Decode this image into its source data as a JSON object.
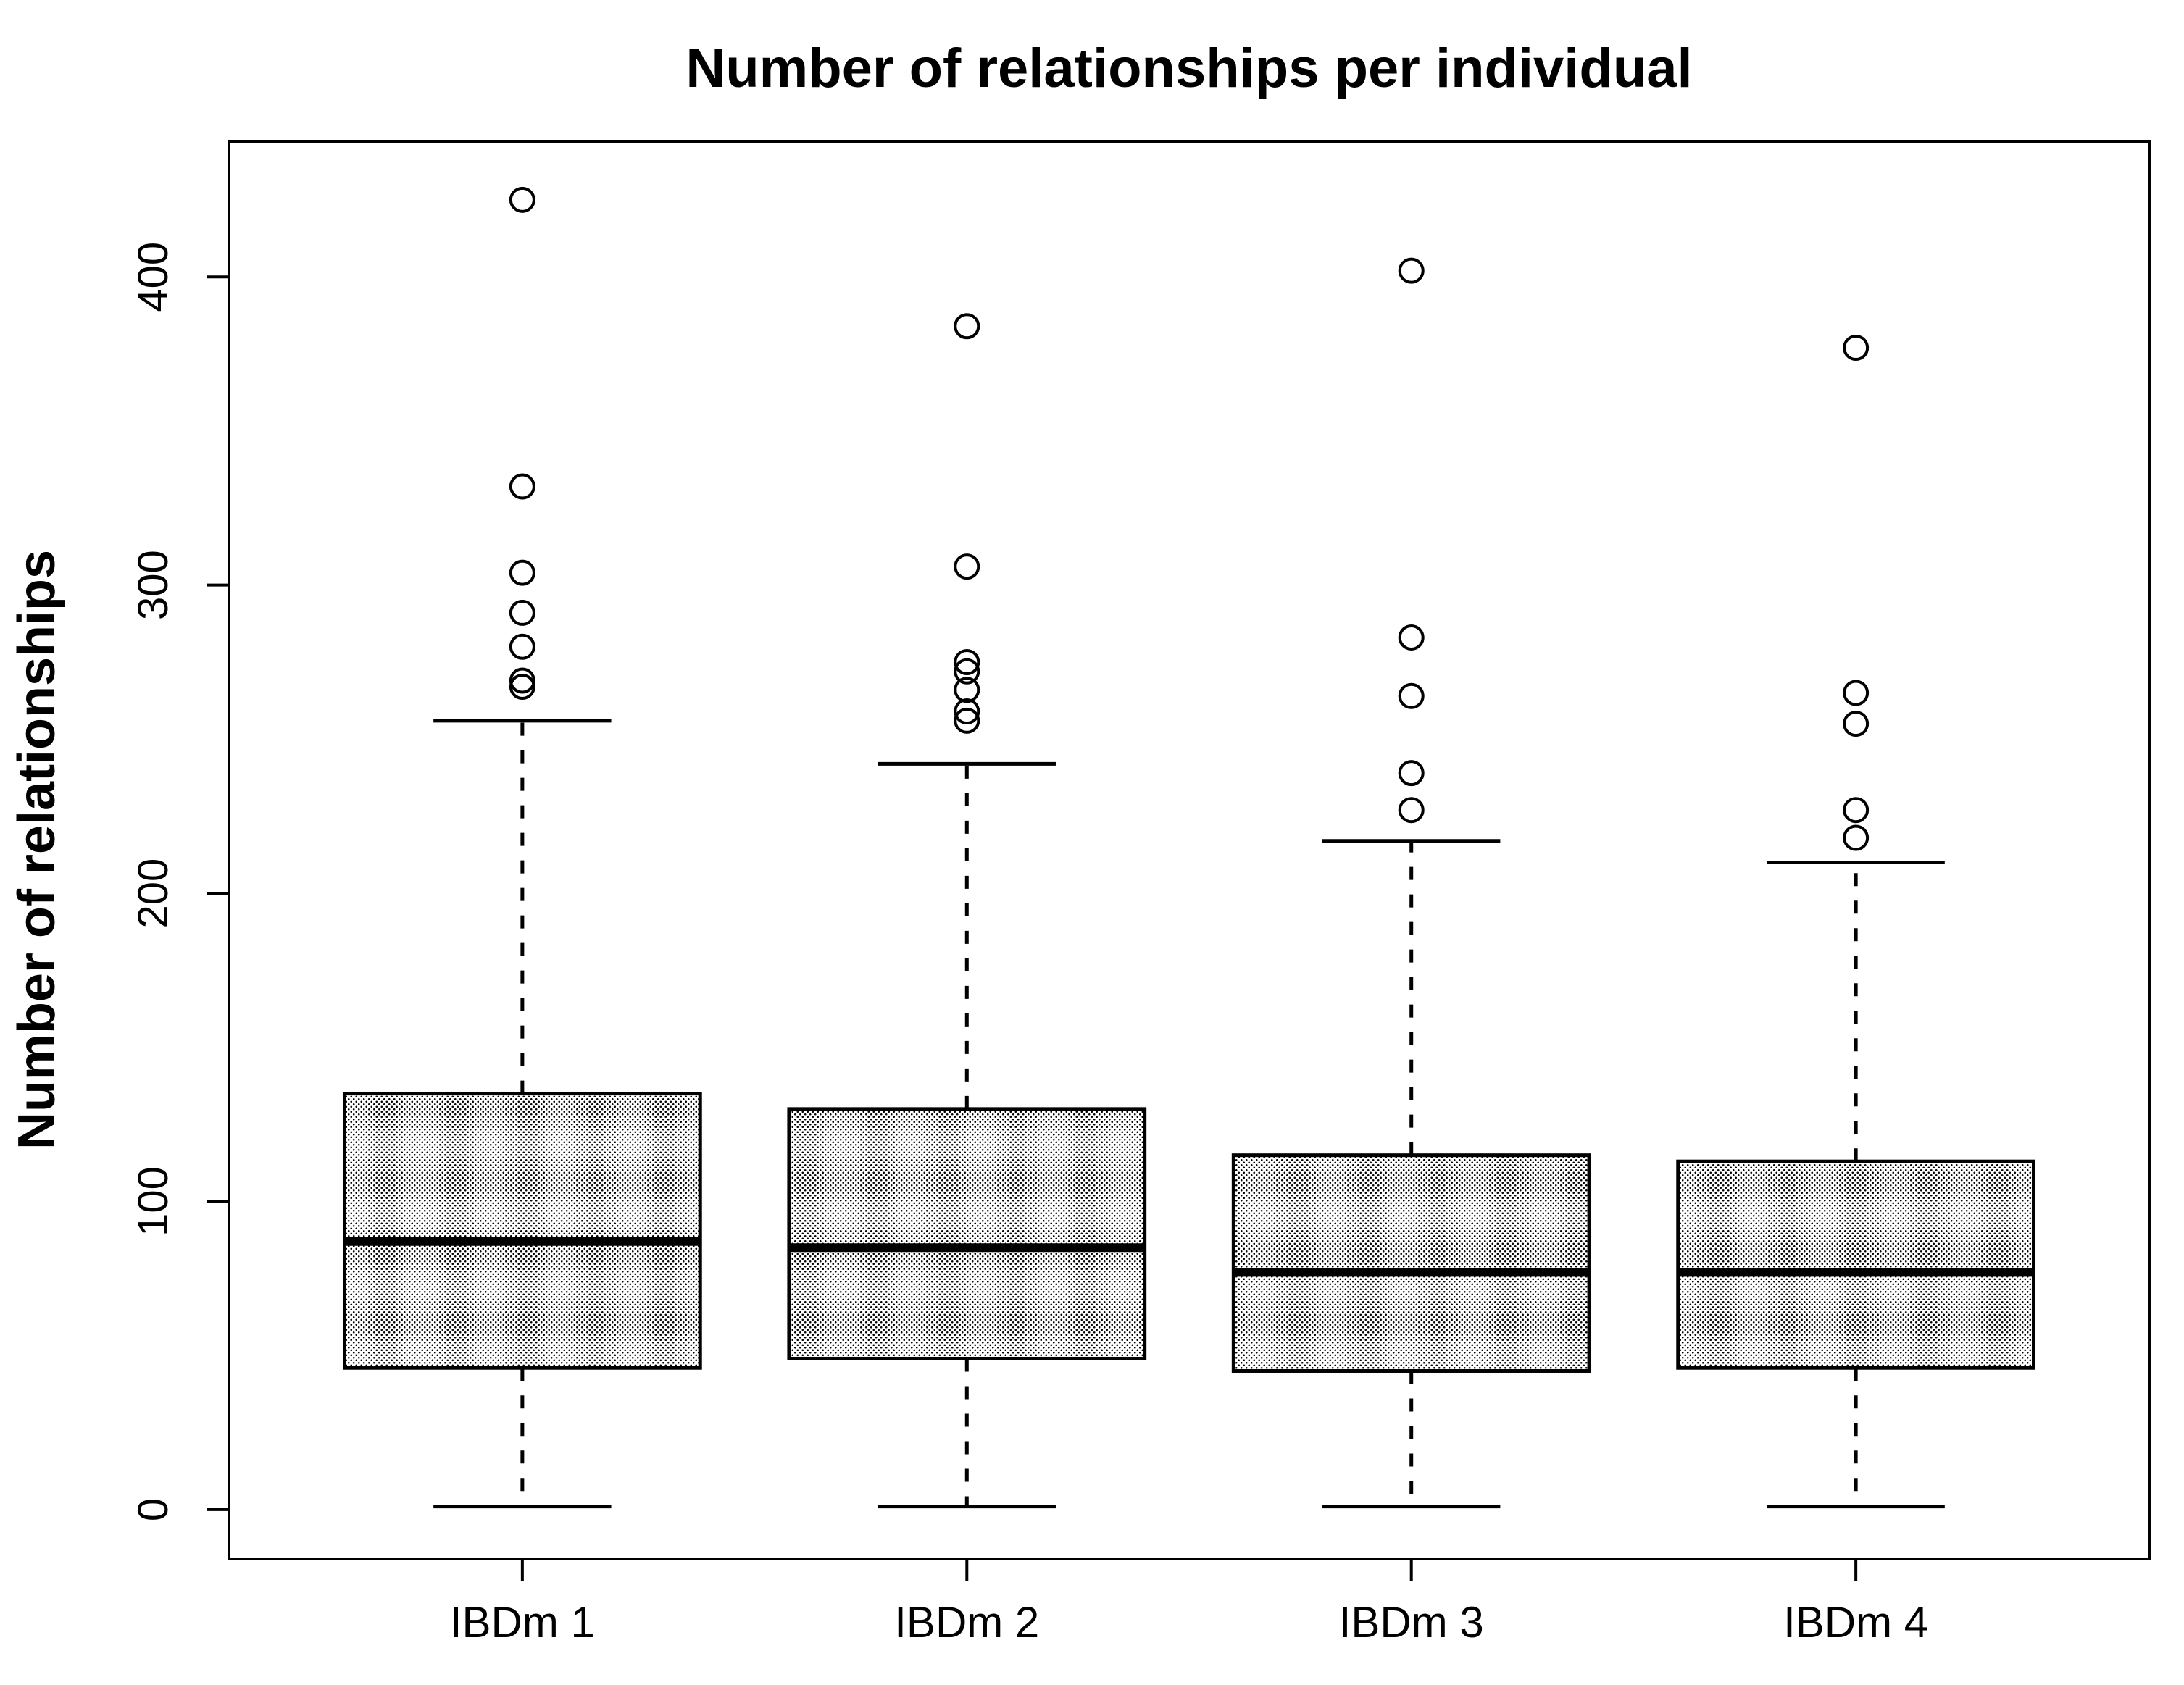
{
  "figure": {
    "title": "Number of relationships per individual",
    "ylabel": "Number of relationships"
  },
  "chart_data": {
    "type": "boxplot",
    "title": "Number of relationships per individual",
    "xlabel": "",
    "ylabel": "Number of relationships",
    "categories": [
      "IBDm 1",
      "IBDm 2",
      "IBDm 3",
      "IBDm 4"
    ],
    "yticks": [
      0,
      100,
      200,
      300,
      400
    ],
    "ylim": [
      -16,
      444
    ],
    "grid": false,
    "legend": "none",
    "series": [
      {
        "name": "IBDm 1",
        "whisker_low": 1,
        "q1": 46,
        "median": 87,
        "q3": 135,
        "whisker_high": 256,
        "outliers": [
          267,
          269,
          280,
          291,
          304,
          332,
          425
        ]
      },
      {
        "name": "IBDm 2",
        "whisker_low": 1,
        "q1": 49,
        "median": 85,
        "q3": 130,
        "whisker_high": 242,
        "outliers": [
          256,
          259,
          266,
          272,
          275,
          306,
          384
        ]
      },
      {
        "name": "IBDm 3",
        "whisker_low": 1,
        "q1": 45,
        "median": 77,
        "q3": 115,
        "whisker_high": 217,
        "outliers": [
          227,
          239,
          264,
          283,
          402
        ]
      },
      {
        "name": "IBDm 4",
        "whisker_low": 1,
        "q1": 46,
        "median": 77,
        "q3": 113,
        "whisker_high": 210,
        "outliers": [
          218,
          227,
          255,
          265,
          377
        ]
      }
    ],
    "colors": {
      "stroke": "#000000",
      "box_fill_dots": "#000000",
      "background": "#ffffff"
    }
  }
}
